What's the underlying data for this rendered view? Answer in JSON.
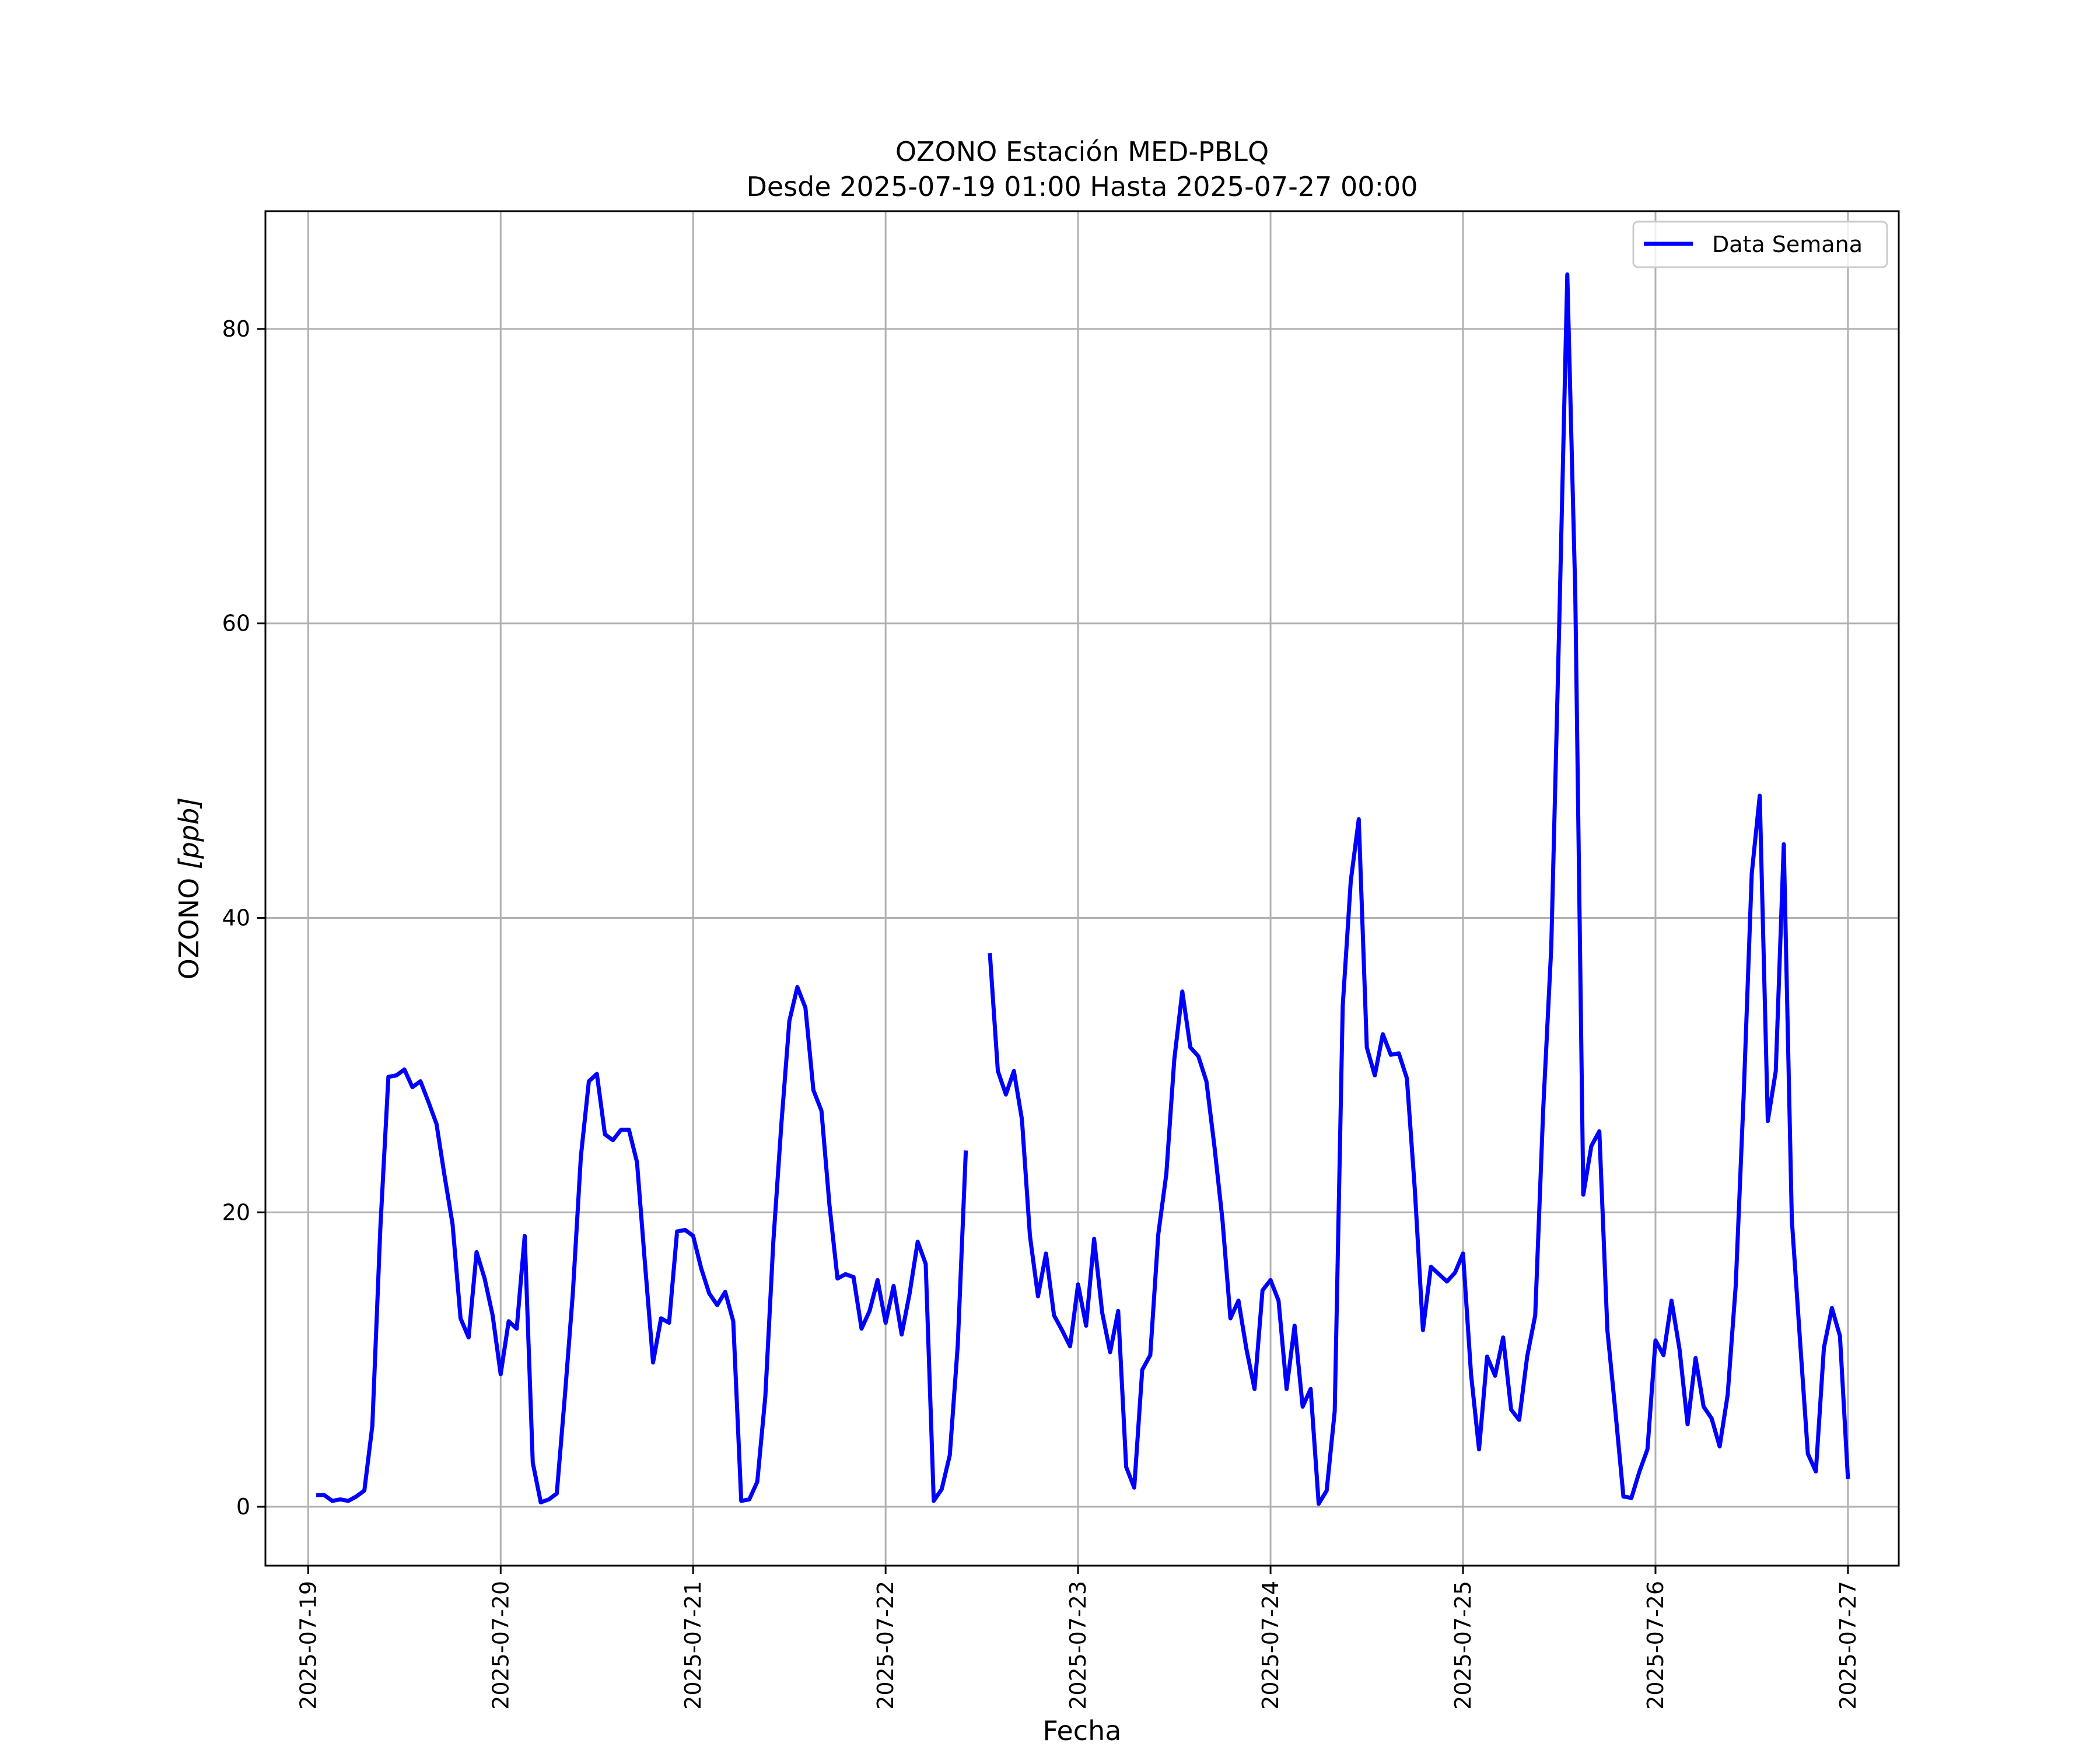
{
  "chart_data": {
    "type": "line",
    "title": "OZONO Estación MED-PBLQ",
    "subtitle": "Desde 2025-07-19 01:00 Hasta 2025-07-27 00:00",
    "xlabel": "Fecha",
    "ylabel": "OZONO [ppb]",
    "ylabel_main": "OZONO ",
    "ylabel_unit": "[ppb]",
    "xlim": [
      "2025-07-18 18:40",
      "2025-07-27 06:20"
    ],
    "ylim": [
      -4.0,
      88.0
    ],
    "grid": true,
    "legend_position": "top-right",
    "x_ticks": [
      "2025-07-19",
      "2025-07-20",
      "2025-07-21",
      "2025-07-22",
      "2025-07-23",
      "2025-07-24",
      "2025-07-25",
      "2025-07-26",
      "2025-07-27"
    ],
    "y_ticks": [
      0,
      20,
      40,
      60,
      80
    ],
    "line_color": "#0000ff",
    "series": [
      {
        "name": "Data Semana",
        "points": [
          [
            "2025-07-19 01:00",
            0.8
          ],
          [
            "2025-07-19 02:00",
            0.8
          ],
          [
            "2025-07-19 03:00",
            0.4
          ],
          [
            "2025-07-19 04:00",
            0.5
          ],
          [
            "2025-07-19 05:00",
            0.4
          ],
          [
            "2025-07-19 06:00",
            0.7
          ],
          [
            "2025-07-19 07:00",
            1.1
          ],
          [
            "2025-07-19 08:00",
            5.5
          ],
          [
            "2025-07-19 09:00",
            19.0
          ],
          [
            "2025-07-19 10:00",
            29.2
          ],
          [
            "2025-07-19 11:00",
            29.3
          ],
          [
            "2025-07-19 12:00",
            29.7
          ],
          [
            "2025-07-19 13:00",
            28.5
          ],
          [
            "2025-07-19 14:00",
            28.9
          ],
          [
            "2025-07-19 15:00",
            27.5
          ],
          [
            "2025-07-19 16:00",
            26.0
          ],
          [
            "2025-07-19 17:00",
            22.5
          ],
          [
            "2025-07-19 18:00",
            19.2
          ],
          [
            "2025-07-19 19:00",
            12.8
          ],
          [
            "2025-07-19 20:00",
            11.5
          ],
          [
            "2025-07-19 21:00",
            17.3
          ],
          [
            "2025-07-19 22:00",
            15.5
          ],
          [
            "2025-07-19 23:00",
            13.0
          ],
          [
            "2025-07-20 00:00",
            9.0
          ],
          [
            "2025-07-20 01:00",
            12.6
          ],
          [
            "2025-07-20 02:00",
            12.1
          ],
          [
            "2025-07-20 03:00",
            18.4
          ],
          [
            "2025-07-20 04:00",
            3.0
          ],
          [
            "2025-07-20 05:00",
            0.3
          ],
          [
            "2025-07-20 06:00",
            0.5
          ],
          [
            "2025-07-20 07:00",
            0.9
          ],
          [
            "2025-07-20 08:00",
            7.5
          ],
          [
            "2025-07-20 09:00",
            14.5
          ],
          [
            "2025-07-20 10:00",
            23.8
          ],
          [
            "2025-07-20 11:00",
            28.9
          ],
          [
            "2025-07-20 12:00",
            29.4
          ],
          [
            "2025-07-20 13:00",
            25.3
          ],
          [
            "2025-07-20 14:00",
            24.9
          ],
          [
            "2025-07-20 15:00",
            25.6
          ],
          [
            "2025-07-20 16:00",
            25.6
          ],
          [
            "2025-07-20 17:00",
            23.4
          ],
          [
            "2025-07-20 18:00",
            16.5
          ],
          [
            "2025-07-20 19:00",
            9.8
          ],
          [
            "2025-07-20 20:00",
            12.8
          ],
          [
            "2025-07-20 21:00",
            12.5
          ],
          [
            "2025-07-20 22:00",
            18.7
          ],
          [
            "2025-07-20 23:00",
            18.8
          ],
          [
            "2025-07-21 00:00",
            18.4
          ],
          [
            "2025-07-21 01:00",
            16.2
          ],
          [
            "2025-07-21 02:00",
            14.5
          ],
          [
            "2025-07-21 03:00",
            13.7
          ],
          [
            "2025-07-21 04:00",
            14.6
          ],
          [
            "2025-07-21 05:00",
            12.6
          ],
          [
            "2025-07-21 06:00",
            0.4
          ],
          [
            "2025-07-21 07:00",
            0.5
          ],
          [
            "2025-07-21 08:00",
            1.7
          ],
          [
            "2025-07-21 09:00",
            7.5
          ],
          [
            "2025-07-21 10:00",
            18.0
          ],
          [
            "2025-07-21 11:00",
            26.0
          ],
          [
            "2025-07-21 12:00",
            33.0
          ],
          [
            "2025-07-21 13:00",
            35.3
          ],
          [
            "2025-07-21 14:00",
            33.9
          ],
          [
            "2025-07-21 15:00",
            28.3
          ],
          [
            "2025-07-21 16:00",
            26.9
          ],
          [
            "2025-07-21 17:00",
            20.5
          ],
          [
            "2025-07-21 18:00",
            15.5
          ],
          [
            "2025-07-21 19:00",
            15.8
          ],
          [
            "2025-07-21 20:00",
            15.6
          ],
          [
            "2025-07-21 21:00",
            12.1
          ],
          [
            "2025-07-21 22:00",
            13.3
          ],
          [
            "2025-07-21 23:00",
            15.4
          ],
          [
            "2025-07-22 00:00",
            12.5
          ],
          [
            "2025-07-22 01:00",
            15.0
          ],
          [
            "2025-07-22 02:00",
            11.7
          ],
          [
            "2025-07-22 03:00",
            14.5
          ],
          [
            "2025-07-22 04:00",
            18.0
          ],
          [
            "2025-07-22 05:00",
            16.5
          ],
          [
            "2025-07-22 06:00",
            0.4
          ],
          [
            "2025-07-22 07:00",
            1.2
          ],
          [
            "2025-07-22 08:00",
            3.5
          ],
          [
            "2025-07-22 09:00",
            11.0
          ],
          [
            "2025-07-22 10:00",
            24.2
          ],
          null,
          [
            "2025-07-22 13:00",
            37.6
          ],
          [
            "2025-07-22 14:00",
            29.6
          ],
          [
            "2025-07-22 15:00",
            28.0
          ],
          [
            "2025-07-22 16:00",
            29.6
          ],
          [
            "2025-07-22 17:00",
            26.3
          ],
          [
            "2025-07-22 18:00",
            18.4
          ],
          [
            "2025-07-22 19:00",
            14.3
          ],
          [
            "2025-07-22 20:00",
            17.2
          ],
          [
            "2025-07-22 21:00",
            13.0
          ],
          [
            "2025-07-22 22:00",
            12.0
          ],
          [
            "2025-07-22 23:00",
            10.9
          ],
          [
            "2025-07-23 00:00",
            15.1
          ],
          [
            "2025-07-23 01:00",
            12.3
          ],
          [
            "2025-07-23 02:00",
            18.2
          ],
          [
            "2025-07-23 03:00",
            13.2
          ],
          [
            "2025-07-23 04:00",
            10.5
          ],
          [
            "2025-07-23 05:00",
            13.3
          ],
          [
            "2025-07-23 06:00",
            2.7
          ],
          [
            "2025-07-23 07:00",
            1.3
          ],
          [
            "2025-07-23 08:00",
            9.3
          ],
          [
            "2025-07-23 09:00",
            10.3
          ],
          [
            "2025-07-23 10:00",
            18.5
          ],
          [
            "2025-07-23 11:00",
            22.6
          ],
          [
            "2025-07-23 12:00",
            30.4
          ],
          [
            "2025-07-23 13:00",
            35.0
          ],
          [
            "2025-07-23 14:00",
            31.2
          ],
          [
            "2025-07-23 15:00",
            30.6
          ],
          [
            "2025-07-23 16:00",
            28.9
          ],
          [
            "2025-07-23 17:00",
            24.5
          ],
          [
            "2025-07-23 18:00",
            19.5
          ],
          [
            "2025-07-23 19:00",
            12.8
          ],
          [
            "2025-07-23 20:00",
            14.0
          ],
          [
            "2025-07-23 21:00",
            10.7
          ],
          [
            "2025-07-23 22:00",
            8.0
          ],
          [
            "2025-07-23 23:00",
            14.7
          ],
          [
            "2025-07-24 00:00",
            15.4
          ],
          [
            "2025-07-24 01:00",
            14.0
          ],
          [
            "2025-07-24 02:00",
            8.0
          ],
          [
            "2025-07-24 03:00",
            12.3
          ],
          [
            "2025-07-24 04:00",
            6.8
          ],
          [
            "2025-07-24 05:00",
            8.0
          ],
          [
            "2025-07-24 06:00",
            0.2
          ],
          [
            "2025-07-24 07:00",
            1.1
          ],
          [
            "2025-07-24 08:00",
            6.5
          ],
          [
            "2025-07-24 09:00",
            34.0
          ],
          [
            "2025-07-24 10:00",
            42.5
          ],
          [
            "2025-07-24 11:00",
            46.7
          ],
          [
            "2025-07-24 12:00",
            31.2
          ],
          [
            "2025-07-24 13:00",
            29.3
          ],
          [
            "2025-07-24 14:00",
            32.1
          ],
          [
            "2025-07-24 15:00",
            30.7
          ],
          [
            "2025-07-24 16:00",
            30.8
          ],
          [
            "2025-07-24 17:00",
            29.1
          ],
          [
            "2025-07-24 18:00",
            21.5
          ],
          [
            "2025-07-24 19:00",
            12.0
          ],
          [
            "2025-07-24 20:00",
            16.3
          ],
          [
            "2025-07-24 21:00",
            15.8
          ],
          [
            "2025-07-24 22:00",
            15.3
          ],
          [
            "2025-07-24 23:00",
            15.9
          ],
          [
            "2025-07-25 00:00",
            17.2
          ],
          [
            "2025-07-25 01:00",
            9.0
          ],
          [
            "2025-07-25 02:00",
            3.9
          ],
          [
            "2025-07-25 03:00",
            10.2
          ],
          [
            "2025-07-25 04:00",
            8.9
          ],
          [
            "2025-07-25 05:00",
            11.5
          ],
          [
            "2025-07-25 06:00",
            6.6
          ],
          [
            "2025-07-25 07:00",
            5.9
          ],
          [
            "2025-07-25 08:00",
            10.2
          ],
          [
            "2025-07-25 09:00",
            13.0
          ],
          [
            "2025-07-25 10:00",
            27.0
          ],
          [
            "2025-07-25 11:00",
            38.0
          ],
          [
            "2025-07-25 12:00",
            60.0
          ],
          [
            "2025-07-25 13:00",
            83.7
          ],
          [
            "2025-07-25 14:00",
            62.0
          ],
          [
            "2025-07-25 15:00",
            21.2
          ],
          [
            "2025-07-25 16:00",
            24.5
          ],
          [
            "2025-07-25 17:00",
            25.5
          ],
          [
            "2025-07-25 18:00",
            12.0
          ],
          [
            "2025-07-25 19:00",
            6.5
          ],
          [
            "2025-07-25 20:00",
            0.7
          ],
          [
            "2025-07-25 21:00",
            0.6
          ],
          [
            "2025-07-25 22:00",
            2.4
          ],
          [
            "2025-07-25 23:00",
            3.9
          ],
          [
            "2025-07-26 00:00",
            11.3
          ],
          [
            "2025-07-26 01:00",
            10.3
          ],
          [
            "2025-07-26 02:00",
            14.0
          ],
          [
            "2025-07-26 03:00",
            10.7
          ],
          [
            "2025-07-26 04:00",
            5.6
          ],
          [
            "2025-07-26 05:00",
            10.1
          ],
          [
            "2025-07-26 06:00",
            6.8
          ],
          [
            "2025-07-26 07:00",
            6.0
          ],
          [
            "2025-07-26 08:00",
            4.1
          ],
          [
            "2025-07-26 09:00",
            7.6
          ],
          [
            "2025-07-26 10:00",
            15.0
          ],
          [
            "2025-07-26 11:00",
            28.0
          ],
          [
            "2025-07-26 12:00",
            43.0
          ],
          [
            "2025-07-26 13:00",
            48.3
          ],
          [
            "2025-07-26 14:00",
            26.2
          ],
          [
            "2025-07-26 15:00",
            29.6
          ],
          [
            "2025-07-26 16:00",
            45.0
          ],
          [
            "2025-07-26 17:00",
            19.5
          ],
          [
            "2025-07-26 18:00",
            11.5
          ],
          [
            "2025-07-26 19:00",
            3.6
          ],
          [
            "2025-07-26 20:00",
            2.4
          ],
          [
            "2025-07-26 21:00",
            10.8
          ],
          [
            "2025-07-26 22:00",
            13.5
          ],
          [
            "2025-07-26 23:00",
            11.6
          ],
          [
            "2025-07-27 00:00",
            1.9
          ]
        ]
      }
    ]
  }
}
